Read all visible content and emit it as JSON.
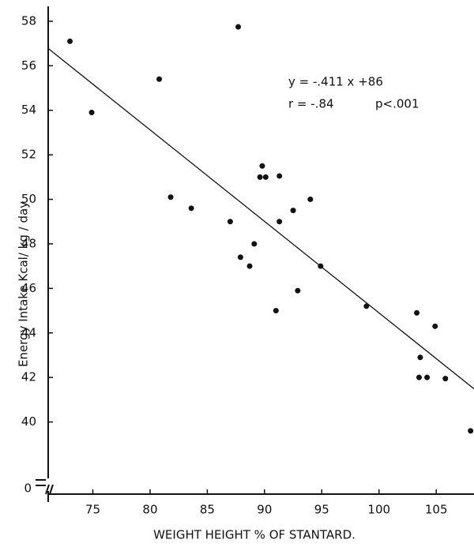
{
  "chart_data": {
    "type": "scatter",
    "x_label": "WEIGHT  HEIGHT  %  OF  STANTARD.",
    "y_label": "Energy   Intake   Kcal/ kg / day",
    "annotations": [
      "y = -.411 x +86",
      "r = -.84",
      "p<.001"
    ],
    "trendline": {
      "slope": -0.411,
      "intercept": 86
    },
    "y_break_label": "0",
    "color": "#111111",
    "xlim": [
      71.1,
      108.3
    ],
    "xticks": [
      75,
      80,
      85,
      90,
      95,
      100,
      105
    ],
    "ylim": [
      38,
      58.6
    ],
    "yticks": [
      40,
      42,
      44,
      46,
      48,
      50,
      52,
      54,
      56,
      58
    ],
    "x": [
      73.0,
      74.9,
      80.8,
      87.7,
      81.8,
      83.6,
      87.0,
      87.9,
      88.7,
      89.1,
      89.6,
      89.8,
      90.1,
      91.3,
      91.3,
      91.0,
      92.5,
      92.9,
      94.0,
      94.9,
      98.9,
      103.3,
      104.9,
      103.6,
      103.5,
      104.2,
      105.8,
      108.0
    ],
    "y": [
      57.1,
      53.9,
      55.4,
      57.75,
      50.1,
      49.6,
      49.0,
      47.4,
      47.0,
      48.0,
      51.0,
      51.5,
      51.0,
      51.05,
      49.0,
      45.0,
      49.5,
      45.9,
      50.0,
      47.0,
      45.2,
      44.9,
      44.3,
      42.9,
      42.0,
      42.0,
      41.95,
      39.6
    ]
  }
}
